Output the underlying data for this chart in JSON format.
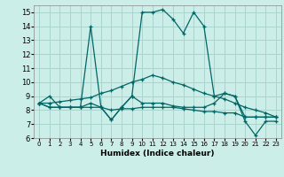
{
  "xlabel": "Humidex (Indice chaleur)",
  "xlim": [
    -0.5,
    23.5
  ],
  "ylim": [
    6,
    15.5
  ],
  "yticks": [
    6,
    7,
    8,
    9,
    10,
    11,
    12,
    13,
    14,
    15
  ],
  "xticks": [
    0,
    1,
    2,
    3,
    4,
    5,
    6,
    7,
    8,
    9,
    10,
    11,
    12,
    13,
    14,
    15,
    16,
    17,
    18,
    19,
    20,
    21,
    22,
    23
  ],
  "xtick_labels": [
    "0",
    "1",
    "2",
    "3",
    "4",
    "5",
    "6",
    "7",
    "8",
    "9",
    "10",
    "11",
    "12",
    "13",
    "14",
    "15",
    "16",
    "17",
    "18",
    "19",
    "20",
    "21",
    "22",
    "23"
  ],
  "bg_color": "#cceee8",
  "grid_color": "#aad4ce",
  "line_color": "#006666",
  "lines": [
    {
      "x": [
        0,
        1,
        2,
        3,
        4,
        5,
        6,
        7,
        8,
        9,
        10,
        11,
        12,
        13,
        14,
        15,
        16,
        17,
        18,
        19,
        20,
        21,
        22,
        23
      ],
      "y": [
        8.5,
        9.0,
        8.2,
        8.2,
        8.2,
        14.0,
        8.2,
        7.3,
        8.2,
        9.0,
        15.0,
        15.0,
        15.2,
        14.5,
        13.5,
        15.0,
        14.0,
        9.0,
        9.2,
        9.0,
        7.2,
        6.2,
        7.2,
        7.2
      ]
    },
    {
      "x": [
        0,
        1,
        2,
        3,
        4,
        5,
        6,
        7,
        8,
        9,
        10,
        11,
        12,
        13,
        14,
        15,
        16,
        17,
        18,
        19,
        20,
        21,
        22,
        23
      ],
      "y": [
        8.5,
        8.2,
        8.2,
        8.2,
        8.2,
        8.2,
        8.2,
        8.0,
        8.1,
        8.1,
        8.2,
        8.2,
        8.2,
        8.2,
        8.1,
        8.0,
        7.9,
        7.9,
        7.8,
        7.8,
        7.5,
        7.5,
        7.5,
        7.5
      ]
    },
    {
      "x": [
        0,
        1,
        2,
        3,
        4,
        5,
        6,
        7,
        8,
        9,
        10,
        11,
        12,
        13,
        14,
        15,
        16,
        17,
        18,
        19,
        20,
        21,
        22,
        23
      ],
      "y": [
        8.5,
        8.5,
        8.6,
        8.7,
        8.8,
        8.9,
        9.2,
        9.4,
        9.7,
        10.0,
        10.2,
        10.5,
        10.3,
        10.0,
        9.8,
        9.5,
        9.2,
        9.0,
        8.8,
        8.5,
        8.2,
        8.0,
        7.8,
        7.5
      ]
    },
    {
      "x": [
        0,
        1,
        2,
        3,
        4,
        5,
        6,
        7,
        8,
        9,
        10,
        11,
        12,
        13,
        14,
        15,
        16,
        17,
        18,
        19,
        20,
        21,
        22,
        23
      ],
      "y": [
        8.5,
        8.2,
        8.2,
        8.2,
        8.2,
        8.5,
        8.2,
        7.3,
        8.2,
        9.0,
        8.5,
        8.5,
        8.5,
        8.3,
        8.2,
        8.2,
        8.2,
        8.5,
        9.2,
        9.0,
        7.5,
        7.5,
        7.5,
        7.5
      ]
    }
  ]
}
